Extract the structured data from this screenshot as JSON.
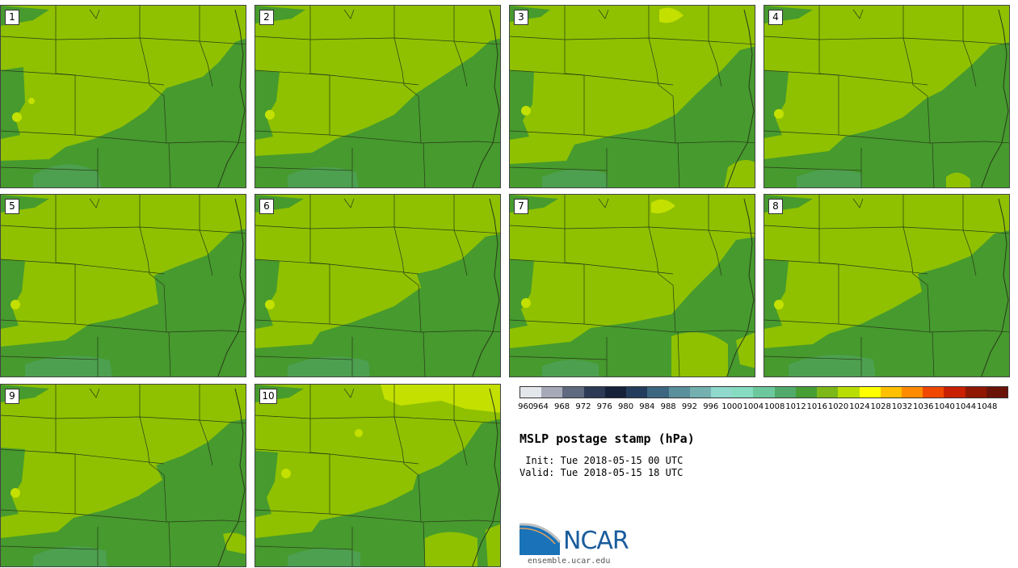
{
  "panels": [
    {
      "label": "1"
    },
    {
      "label": "2"
    },
    {
      "label": "3"
    },
    {
      "label": "4"
    },
    {
      "label": "5"
    },
    {
      "label": "6"
    },
    {
      "label": "7"
    },
    {
      "label": "8"
    },
    {
      "label": "9"
    },
    {
      "label": "10"
    }
  ],
  "colorbar": {
    "ticks": [
      "960",
      "964",
      "968",
      "972",
      "976",
      "980",
      "984",
      "988",
      "992",
      "996",
      "1000",
      "1004",
      "1008",
      "1012",
      "1016",
      "1020",
      "1024",
      "1028",
      "1032",
      "1036",
      "1040",
      "1044",
      "1048"
    ],
    "colors": [
      "#e3e6ea",
      "#a6aab8",
      "#5f6a80",
      "#2c3a55",
      "#15223a",
      "#243d5c",
      "#3d6680",
      "#5a8f9c",
      "#74b0b0",
      "#8fd8cc",
      "#86dcc0",
      "#6cc89c",
      "#52aa6a",
      "#469e34",
      "#7cb818",
      "#b8dd04",
      "#ffff00",
      "#ffc000",
      "#ff8c00",
      "#f04800",
      "#c82000",
      "#901800",
      "#6a1408"
    ]
  },
  "title": "MSLP postage stamp (hPa)",
  "init": " Init: Tue 2018-05-15 00 UTC",
  "valid": "Valid: Tue 2018-05-15 18 UTC",
  "logo": {
    "name": "NCAR",
    "url": "ensemble.ucar.edu"
  },
  "map_colors": {
    "high": "#8fc100",
    "mid": "#469a2e",
    "low": "#4da050",
    "peak": "#c3e000"
  }
}
